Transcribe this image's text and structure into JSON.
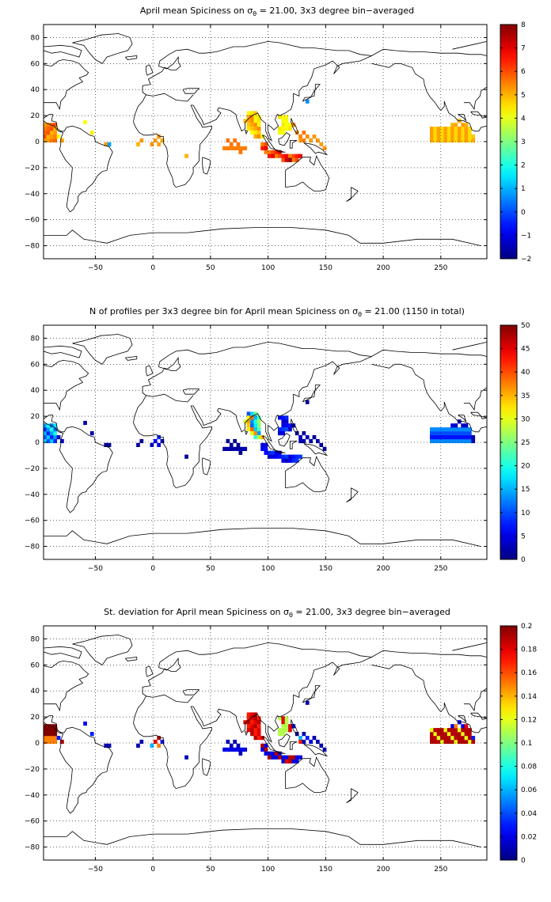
{
  "panels": [
    {
      "title_prefix": "April mean Spiciness on σ",
      "title_sub": "θ",
      "title_suffix": " = 21.00, 3x3 degree bin−averaged",
      "colorbar": {
        "ticks": [
          "8",
          "7",
          "6",
          "5",
          "4",
          "3",
          "2",
          "1",
          "0",
          "−1",
          "−2"
        ],
        "range": [
          -2,
          8
        ]
      },
      "x_ticks": [
        "−50",
        "0",
        "50",
        "100",
        "150",
        "200",
        "250"
      ],
      "y_ticks": [
        "80",
        "60",
        "40",
        "20",
        "0",
        "−20",
        "−40",
        "−60",
        "−80"
      ]
    },
    {
      "title_prefix": "N of profiles per 3x3 degree bin for April mean Spiciness on σ",
      "title_sub": "θ",
      "title_suffix": " = 21.00 (1150 in total)",
      "colorbar": {
        "ticks": [
          "50",
          "45",
          "40",
          "35",
          "30",
          "25",
          "20",
          "15",
          "10",
          "5",
          "0"
        ],
        "range": [
          0,
          50
        ]
      },
      "x_ticks": [
        "−50",
        "0",
        "50",
        "100",
        "150",
        "200",
        "250"
      ],
      "y_ticks": [
        "80",
        "60",
        "40",
        "20",
        "0",
        "−20",
        "−40",
        "−60",
        "−80"
      ]
    },
    {
      "title_prefix": "St. deviation for April mean Spiciness on σ",
      "title_sub": "θ",
      "title_suffix": " = 21.00, 3x3 degree bin−averaged",
      "colorbar": {
        "ticks": [
          "0.2",
          "0.18",
          "0.16",
          "0.14",
          "0.12",
          "0.1",
          "0.08",
          "0.06",
          "0.04",
          "0.02",
          "0"
        ],
        "range": [
          0,
          0.2
        ]
      },
      "x_ticks": [
        "−50",
        "0",
        "50",
        "100",
        "150",
        "200",
        "250"
      ],
      "y_ticks": [
        "80",
        "60",
        "40",
        "20",
        "0",
        "−20",
        "−40",
        "−60",
        "−80"
      ]
    }
  ],
  "map": {
    "lon_range": [
      -95,
      290
    ],
    "lat_range": [
      -90,
      90
    ],
    "colormap": "jet",
    "coastline_color": "#000000",
    "grid": "dotted"
  }
}
